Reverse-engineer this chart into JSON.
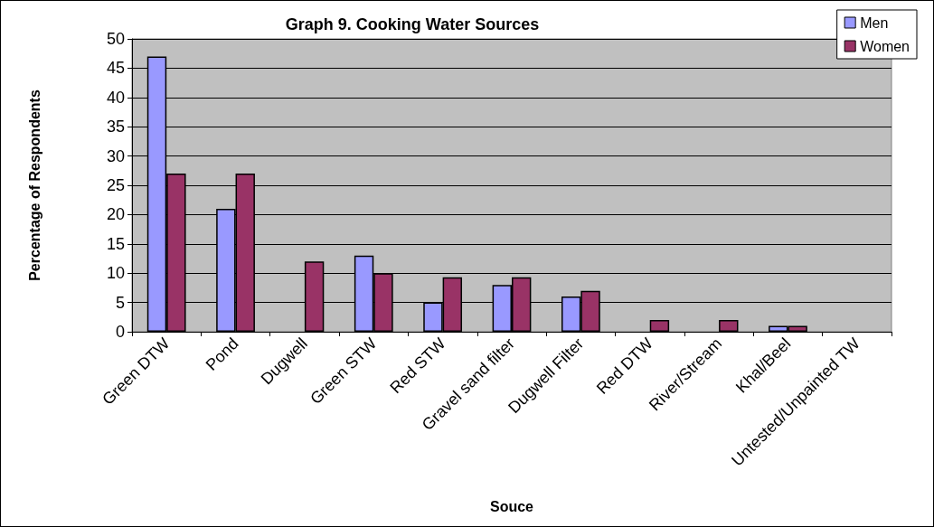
{
  "chart_data": {
    "type": "bar",
    "title": "Graph 9. Cooking Water Sources",
    "xlabel": "Souce",
    "ylabel": "Percentage of Respondents",
    "categories": [
      "Green DTW",
      "Pond",
      "Dugwell",
      "Green STW",
      "Red STW",
      "Gravel sand filter",
      "Dugwell Filter",
      "Red DTW",
      "River/Stream",
      "Khal/Beel",
      "Untested/Unpainted TW"
    ],
    "series": [
      {
        "name": "Men",
        "color": "#9999ff",
        "values": [
          47,
          21,
          null,
          13,
          5,
          8,
          6,
          null,
          null,
          1,
          null
        ]
      },
      {
        "name": "Women",
        "color": "#993366",
        "values": [
          27,
          27,
          12,
          10,
          9.3,
          9.3,
          7,
          2,
          2,
          1,
          null
        ]
      }
    ],
    "ylim": [
      0,
      50
    ],
    "yticks": [
      0,
      5,
      10,
      15,
      20,
      25,
      30,
      35,
      40,
      45,
      50
    ],
    "grid": "y",
    "legend": "top right"
  }
}
